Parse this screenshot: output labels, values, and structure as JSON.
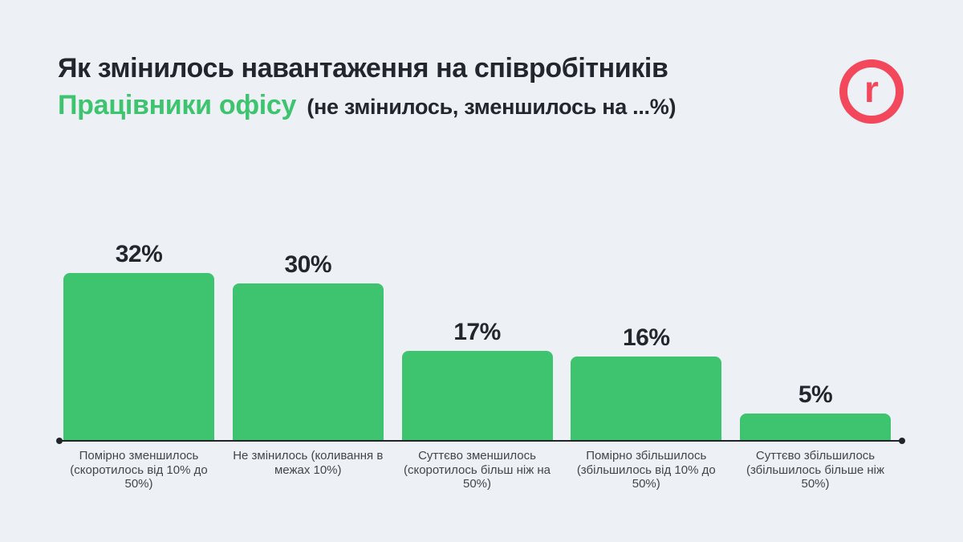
{
  "page": {
    "background": "#edf1f6"
  },
  "header": {
    "title": "Як змінилось навантаження на співробітників",
    "subtitle_highlight": "Працівники офісу",
    "subtitle_note": "(не змінилось, зменшилось на ...%)",
    "highlight_color": "#3ec46f",
    "text_color": "#22262d"
  },
  "logo": {
    "letter": "r",
    "color": "#f3485b"
  },
  "chart_data": {
    "type": "bar",
    "title": "Як змінилось навантаження на співробітників",
    "subtitle": "Працівники офісу (не змінилось, зменшилось на ...%)",
    "categories": [
      "Помірно зменшилось\n(скоротилось від 10% до\n50%)",
      "Не змінилось (коливання в\nмежах 10%)",
      "Суттєво зменшилось\n(скоротилось більш ніж на\n50%)",
      "Помірно збільшилось\n(збільшилось від 10% до\n50%)",
      "Суттєво збільшилось\n(збільшилось більше ніж\n50%)"
    ],
    "values": [
      32,
      30,
      17,
      16,
      5
    ],
    "value_labels": [
      "32%",
      "30%",
      "17%",
      "16%",
      "5%"
    ],
    "value_suffix": "%",
    "xlabel": "",
    "ylabel": "",
    "ylim": [
      0,
      35
    ],
    "grid": false,
    "legend": false,
    "bar_color": "#3ec46f",
    "axis_color": "#212429",
    "label_color": "#22262d"
  }
}
